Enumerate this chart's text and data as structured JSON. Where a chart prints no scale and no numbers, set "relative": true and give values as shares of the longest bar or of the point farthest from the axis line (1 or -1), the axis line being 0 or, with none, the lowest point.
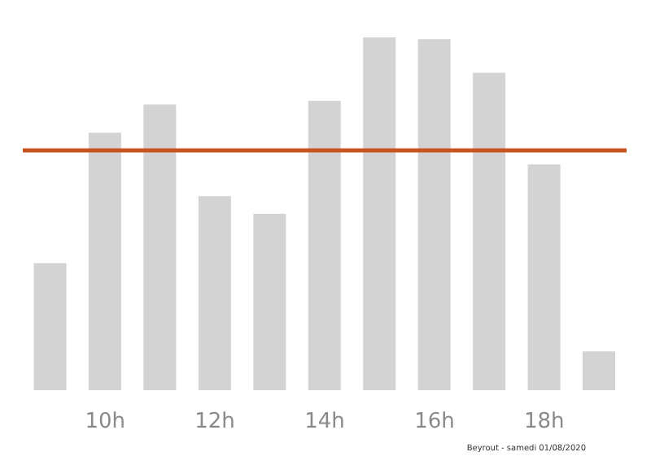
{
  "chart_data": {
    "type": "bar",
    "relative": true,
    "categories": [
      null,
      "10h",
      null,
      "12h",
      null,
      "14h",
      null,
      "16h",
      null,
      "18h",
      null
    ],
    "values": [
      0.36,
      0.73,
      0.81,
      0.55,
      0.5,
      0.82,
      1,
      0.995,
      0.9,
      0.64,
      0.11
    ],
    "color": "#d3d3d3",
    "ref_lines": [
      {
        "axis": "y",
        "value": 0.68,
        "color": "#c8531c"
      }
    ],
    "annotations": [
      "Beyrout - samedi 01/08/2020"
    ],
    "grid": false,
    "legend": false
  }
}
